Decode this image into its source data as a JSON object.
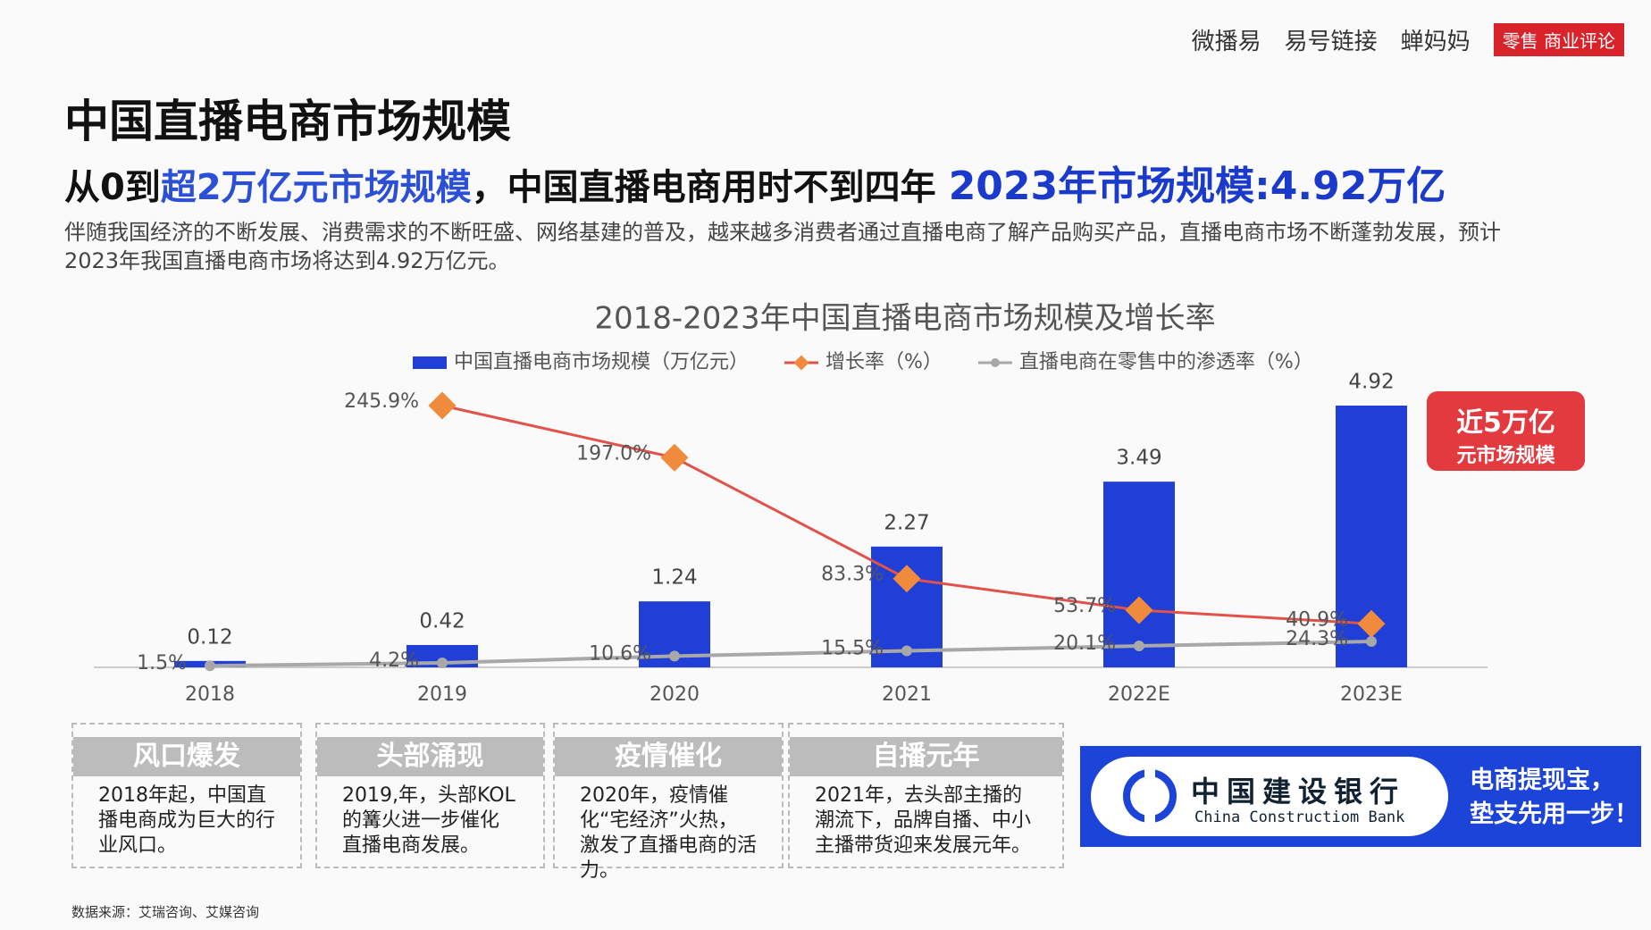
{
  "logos": [
    "微播易",
    "易号链接",
    "蝉妈妈",
    "零售 商业评论"
  ],
  "title": "中国直播电商市场规模",
  "subtitle": {
    "part1": "从0到",
    "part2": "超2万亿元市场规模",
    "part3": "，中国直播电商用时不到四年",
    "highlight": "2023年市场规模:4.92万亿"
  },
  "description": "伴随我国经济的不断发展、消费需求的不断旺盛、网络基建的普及，越来越多消费者通过直播电商了解产品购买产品，直播电商市场不断蓬勃发展，预计2023年我国直播电商市场将达到4.92万亿元。",
  "chart_data": {
    "type": "bar",
    "title": "2018-2023年中国直播电商市场规模及增长率",
    "categories": [
      "2018",
      "2019",
      "2020",
      "2021",
      "2022E",
      "2023E"
    ],
    "series": [
      {
        "name": "中国直播电商市场规模（万亿元）",
        "type": "bar",
        "color": "#1f3fd6",
        "values": [
          0.12,
          0.42,
          1.24,
          2.27,
          3.49,
          4.92
        ]
      },
      {
        "name": "增长率（%）",
        "type": "line",
        "color": "#e0524a",
        "marker_color": "#f08a3c",
        "values": [
          null,
          245.9,
          197.0,
          83.3,
          53.7,
          40.9
        ],
        "value_labels": [
          null,
          "245.9%",
          "197.0%",
          "83.3%",
          "53.7%",
          "40.9%"
        ]
      },
      {
        "name": "直播电商在零售中的渗透率（%）",
        "type": "line",
        "color": "#a8a8a8",
        "marker_color": "#a8a8a8",
        "values": [
          1.5,
          4.2,
          10.6,
          15.5,
          20.1,
          24.3
        ],
        "value_labels": [
          "1.5%",
          "4.2%",
          "10.6%",
          "15.5%",
          "20.1%",
          "24.3%"
        ]
      }
    ],
    "annotation": [
      "近5万亿",
      "元市场规模"
    ]
  },
  "stages": [
    {
      "title": "风口爆发",
      "text": "2018年起，中国直播电商成为巨大的行业风口。"
    },
    {
      "title": "头部涌现",
      "text": "2019,年，头部KOL的篝火进一步催化直播电商发展。"
    },
    {
      "title": "疫情催化",
      "text": "2020年，疫情催化“宅经济”火热，激发了直播电商的活力。"
    },
    {
      "title": "自播元年",
      "text": "2021年，去头部主播的潮流下，品牌自播、中小主播带货迎来发展元年。"
    }
  ],
  "ad": {
    "name_cn": "中国建设银行",
    "name_en": "China Constructiom Bank",
    "slogan": [
      "电商提现宝，",
      "垫支先用一步！"
    ]
  },
  "source": "数据来源：艾瑞咨询、艾媒咨询"
}
